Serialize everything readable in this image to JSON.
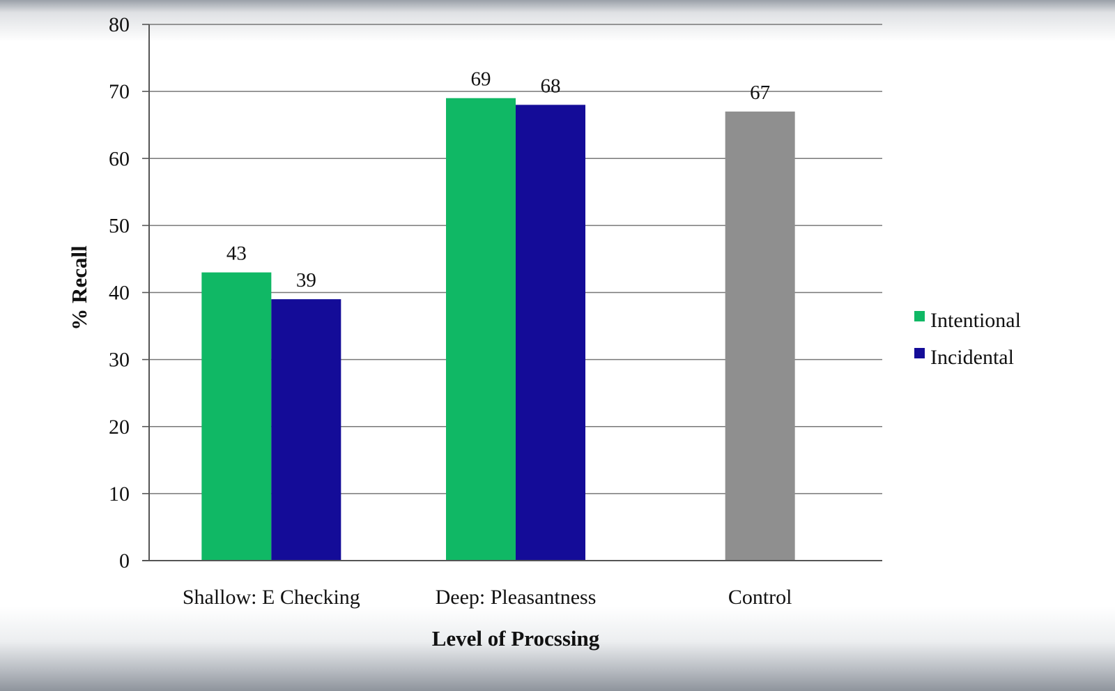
{
  "chart_data": {
    "type": "bar",
    "title": "",
    "xlabel": "Level of Procssing",
    "ylabel": "% Recall",
    "ylim": [
      0,
      80
    ],
    "yticks": [
      0,
      10,
      20,
      30,
      40,
      50,
      60,
      70,
      80
    ],
    "grid": true,
    "legend_position": "right",
    "categories": [
      "Shallow: E Checking",
      "Deep: Pleasantness",
      "Control"
    ],
    "series": [
      {
        "name": "Intentional",
        "color": "#10b865",
        "values": [
          43,
          69,
          null
        ]
      },
      {
        "name": "Incidental",
        "color": "#140c98",
        "values": [
          39,
          68,
          null
        ]
      },
      {
        "name": "Control",
        "color": "#8f8f8f",
        "values": [
          null,
          null,
          67
        ],
        "in_legend": false
      }
    ]
  }
}
